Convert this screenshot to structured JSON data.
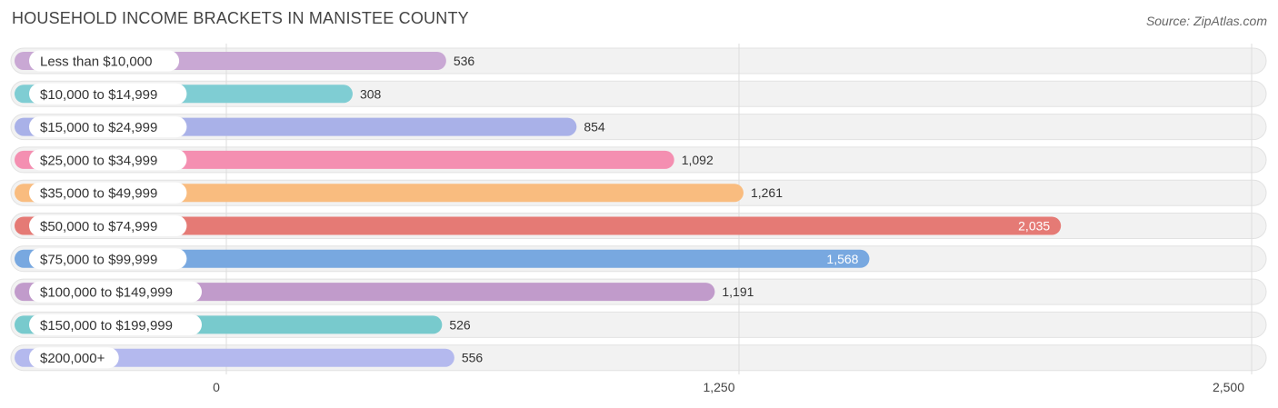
{
  "title": "HOUSEHOLD INCOME BRACKETS IN MANISTEE COUNTY",
  "source": "Source: ZipAtlas.com",
  "chart_data": {
    "type": "bar",
    "orientation": "horizontal",
    "title": "HOUSEHOLD INCOME BRACKETS IN MANISTEE COUNTY",
    "categories": [
      "Less than $10,000",
      "$10,000 to $14,999",
      "$15,000 to $24,999",
      "$25,000 to $34,999",
      "$35,000 to $49,999",
      "$50,000 to $74,999",
      "$75,000 to $99,999",
      "$100,000 to $149,999",
      "$150,000 to $199,999",
      "$200,000+"
    ],
    "values": [
      536,
      308,
      854,
      1092,
      1261,
      2035,
      1568,
      1191,
      526,
      556
    ],
    "value_labels": [
      "536",
      "308",
      "854",
      "1,092",
      "1,261",
      "2,035",
      "1,568",
      "1,191",
      "526",
      "556"
    ],
    "colors": [
      "#c9a8d4",
      "#7fcdd3",
      "#a9b1e8",
      "#f48fb1",
      "#f9bc7f",
      "#e57a75",
      "#78a8e0",
      "#c19bcb",
      "#78cacd",
      "#b4b9ee"
    ],
    "xlim": [
      0,
      2500
    ],
    "ticks": [
      0,
      1250,
      2500
    ],
    "tick_labels": [
      "0",
      "1,250",
      "2,500"
    ],
    "grid": true
  }
}
